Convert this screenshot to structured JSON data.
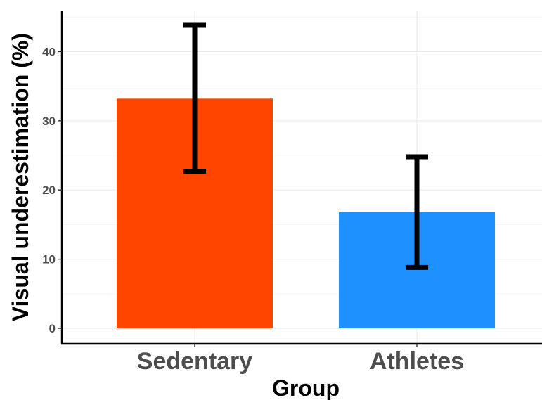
{
  "chart_data": {
    "type": "bar",
    "categories": [
      "Sedentary",
      "Athletes"
    ],
    "values": [
      33.2,
      16.8
    ],
    "error_bars": [
      {
        "low": 22.7,
        "high": 43.8
      },
      {
        "low": 8.8,
        "high": 24.8
      }
    ],
    "bar_colors": [
      "#ff4500",
      "#1e90ff"
    ],
    "xlabel": "Group",
    "ylabel": "Visual underestimation (%)",
    "ylim": [
      0,
      46
    ],
    "yticks": [
      0,
      10,
      20,
      30,
      40
    ],
    "grid": true,
    "legend": "none"
  }
}
